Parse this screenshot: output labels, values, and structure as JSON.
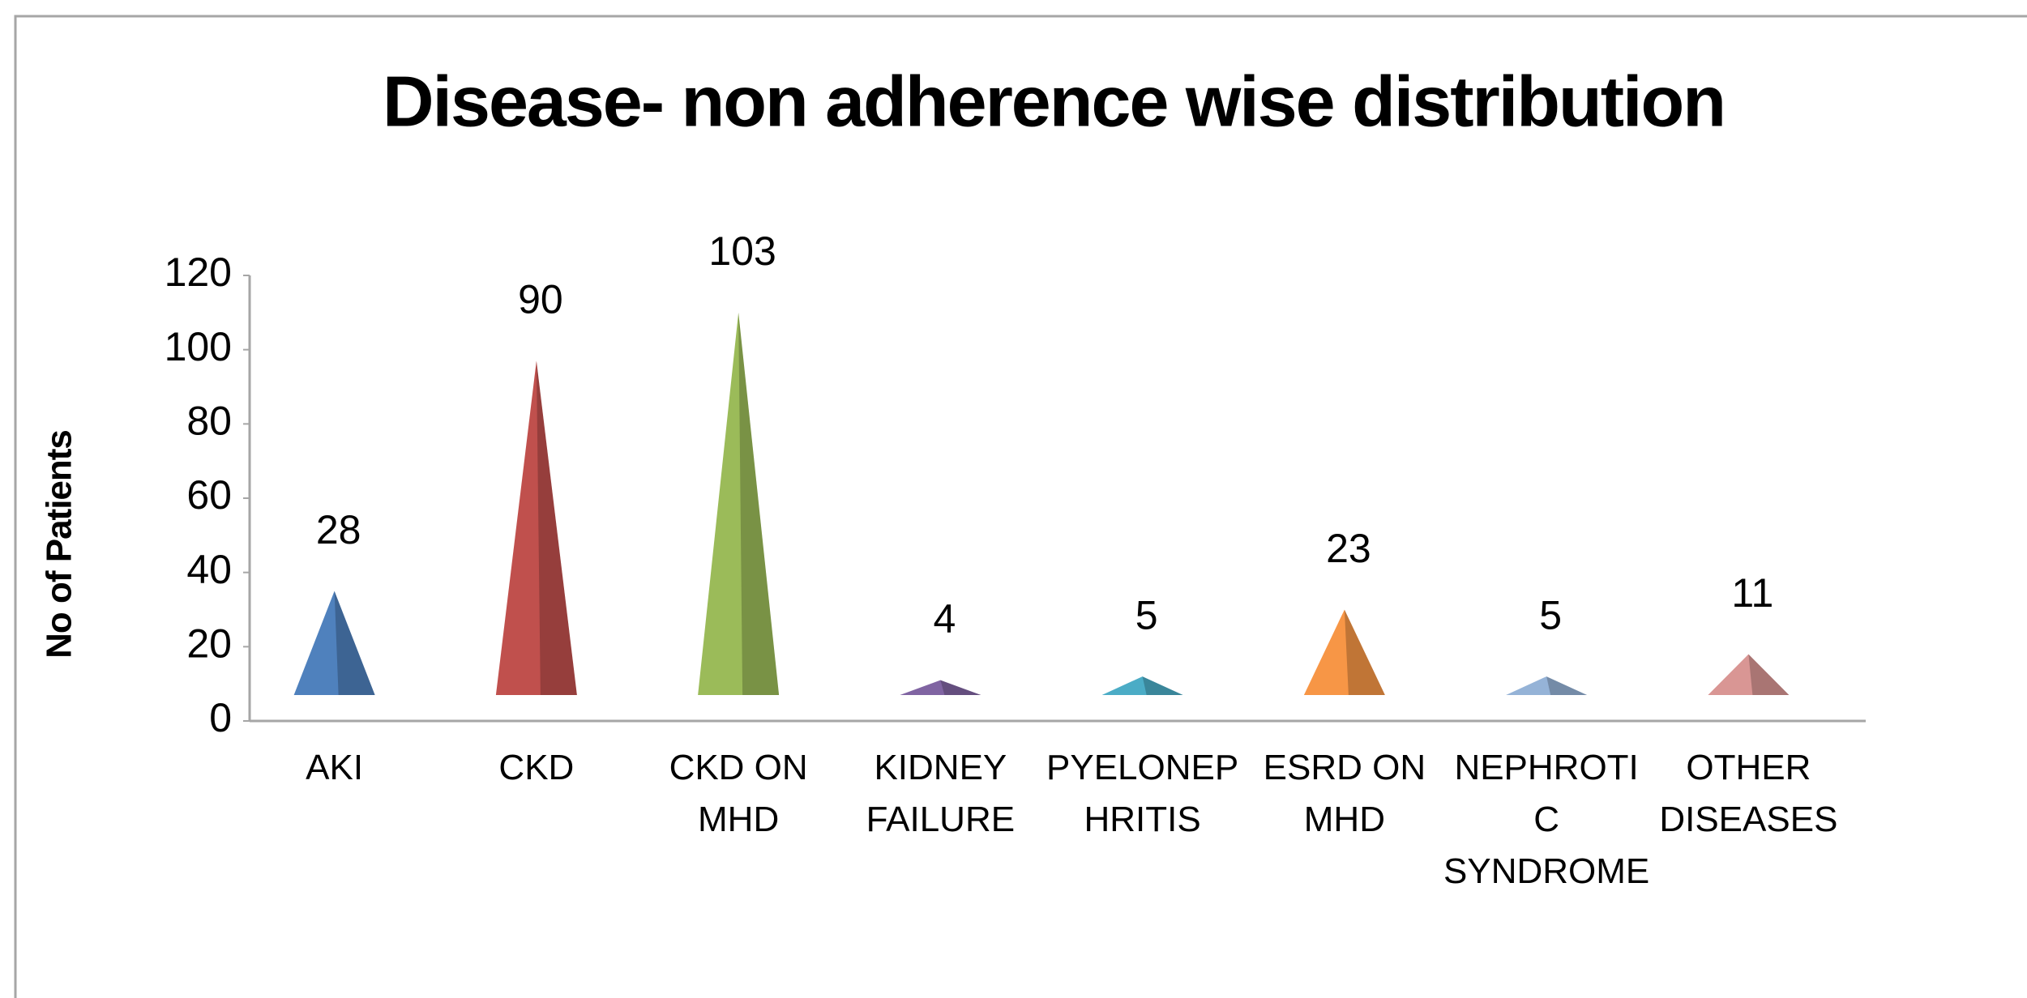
{
  "chart_data": {
    "type": "pyramid",
    "title": "Disease- non adherence wise distribution",
    "y_label": "No of Patients",
    "categories": [
      "AKI",
      "CKD",
      "CKD ON MHD",
      "KIDNEY FAILURE",
      "PYELONEPHRITIS",
      "ESRD ON MHD",
      "NEPHROTIC SYNDROME",
      "OTHER DISEASES"
    ],
    "values": [
      28,
      90,
      103,
      4,
      5,
      23,
      5,
      11
    ],
    "colors": [
      "#4f81bd",
      "#c0504d",
      "#9bbb59",
      "#8064a2",
      "#4bacc6",
      "#f79646",
      "#95b3d7",
      "#d99694"
    ],
    "ylim": [
      0,
      120
    ],
    "yticks": [
      0,
      20,
      40,
      60,
      80,
      100,
      120
    ],
    "grid": false
  }
}
